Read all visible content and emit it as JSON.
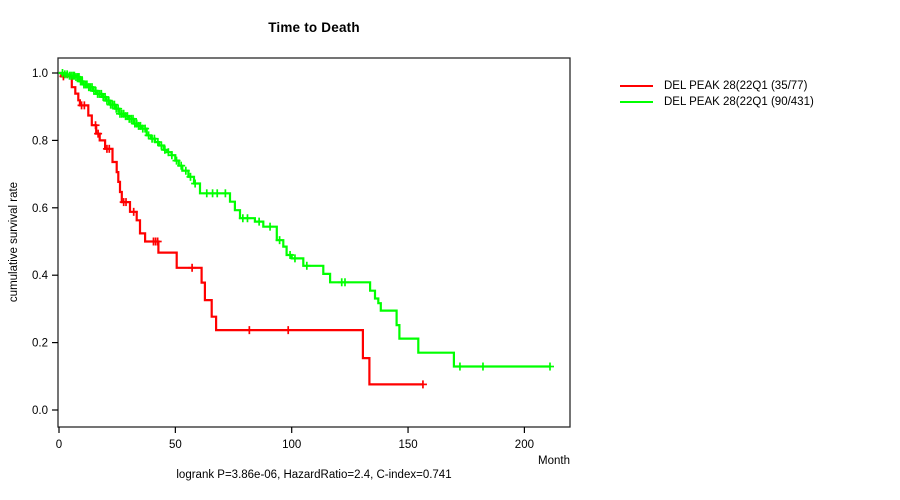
{
  "title": "Time to Death",
  "y_axis_label": "cumulative survival rate",
  "x_axis_label": "Month",
  "footer_stats": "logrank P=3.86e-06, HazardRatio=2.4, C-index=0.741",
  "legend": {
    "items": [
      {
        "label": "DEL PEAK 28(22Q1 (35/77)",
        "color": "#ff0000"
      },
      {
        "label": "DEL PEAK 28(22Q1 (90/431)",
        "color": "#00ff00"
      }
    ]
  },
  "chart_data": {
    "type": "line",
    "subtype": "kaplan-meier-step-survival",
    "title": "Time to Death",
    "xlabel": "Month",
    "ylabel": "cumulative survival rate",
    "xlim": [
      0,
      220
    ],
    "ylim": [
      0,
      1
    ],
    "x_ticks": [
      0,
      50,
      100,
      150,
      200
    ],
    "y_ticks": [
      "0.0",
      "0.2",
      "0.4",
      "0.6",
      "0.8",
      "1.0"
    ],
    "grid": false,
    "legend_position": "right-outside",
    "annotation": "logrank P=3.86e-06, HazardRatio=2.4, C-index=0.741",
    "series": [
      {
        "name": "DEL PEAK 28(22Q1 (35/77)",
        "color": "#ff0000",
        "events": "35/77",
        "steps": [
          [
            0,
            1.0
          ],
          [
            1,
            0.99
          ],
          [
            5.5,
            0.958
          ],
          [
            7,
            0.939
          ],
          [
            8.3,
            0.919
          ],
          [
            9,
            0.904
          ],
          [
            12.6,
            0.874
          ],
          [
            14.1,
            0.845
          ],
          [
            16,
            0.82
          ],
          [
            17.5,
            0.8
          ],
          [
            19.8,
            0.775
          ],
          [
            23,
            0.736
          ],
          [
            24.8,
            0.706
          ],
          [
            25.5,
            0.677
          ],
          [
            26.2,
            0.647
          ],
          [
            27,
            0.617
          ],
          [
            30.5,
            0.588
          ],
          [
            33.4,
            0.563
          ],
          [
            34.8,
            0.524
          ],
          [
            37,
            0.5
          ],
          [
            42.7,
            0.467
          ],
          [
            50.6,
            0.422
          ],
          [
            61.3,
            0.378
          ],
          [
            62.7,
            0.326
          ],
          [
            65.6,
            0.277
          ],
          [
            67.5,
            0.237
          ],
          [
            130.6,
            0.154
          ],
          [
            133.4,
            0.076
          ],
          [
            156.4,
            0.076
          ]
        ],
        "censor_times": [
          1.9,
          9.7,
          10.9,
          15.7,
          16.8,
          20.6,
          21.6,
          27.8,
          28.8,
          32.1,
          40.6,
          41.5,
          42.4,
          57.2,
          81.8,
          98.5,
          156.4
        ]
      },
      {
        "name": "DEL PEAK 28(22Q1 (90/431)",
        "color": "#00ff00",
        "events": "90/431",
        "steps": [
          [
            0,
            1.0
          ],
          [
            2,
            0.996
          ],
          [
            4,
            0.992
          ],
          [
            6.9,
            0.988
          ],
          [
            9,
            0.975
          ],
          [
            10.5,
            0.966
          ],
          [
            12.6,
            0.958
          ],
          [
            14.5,
            0.947
          ],
          [
            16.5,
            0.938
          ],
          [
            18.3,
            0.929
          ],
          [
            20,
            0.918
          ],
          [
            22,
            0.906
          ],
          [
            24.1,
            0.894
          ],
          [
            26,
            0.879
          ],
          [
            28,
            0.872
          ],
          [
            29.8,
            0.864
          ],
          [
            32,
            0.85
          ],
          [
            33.5,
            0.843
          ],
          [
            35.5,
            0.835
          ],
          [
            37.7,
            0.815
          ],
          [
            39.5,
            0.805
          ],
          [
            41.3,
            0.795
          ],
          [
            43,
            0.785
          ],
          [
            45,
            0.772
          ],
          [
            46.5,
            0.765
          ],
          [
            48.4,
            0.756
          ],
          [
            50,
            0.74
          ],
          [
            51.5,
            0.725
          ],
          [
            53,
            0.71
          ],
          [
            55.6,
            0.692
          ],
          [
            58,
            0.672
          ],
          [
            60.6,
            0.643
          ],
          [
            73.5,
            0.618
          ],
          [
            75.6,
            0.593
          ],
          [
            77.8,
            0.569
          ],
          [
            84.2,
            0.559
          ],
          [
            87.8,
            0.544
          ],
          [
            93.6,
            0.504
          ],
          [
            96.4,
            0.485
          ],
          [
            97.8,
            0.46
          ],
          [
            100,
            0.45
          ],
          [
            105,
            0.428
          ],
          [
            113.6,
            0.404
          ],
          [
            116.5,
            0.379
          ],
          [
            133.7,
            0.354
          ],
          [
            135.8,
            0.331
          ],
          [
            137.2,
            0.317
          ],
          [
            138.3,
            0.295
          ],
          [
            145.1,
            0.252
          ],
          [
            146.3,
            0.212
          ],
          [
            154.4,
            0.17
          ],
          [
            169.7,
            0.129
          ],
          [
            211,
            0.129
          ]
        ],
        "censor_times": [
          1.5,
          2.5,
          3.5,
          4.5,
          5.2,
          6,
          6.6,
          7.3,
          8,
          8.6,
          9.3,
          10,
          10.7,
          11.4,
          12,
          12.8,
          13.5,
          14.2,
          15,
          15.8,
          16.6,
          17.4,
          18.2,
          19,
          19.8,
          20.6,
          21.4,
          22.2,
          23,
          23.8,
          24.6,
          25.4,
          26.2,
          27,
          27.8,
          28.6,
          29.4,
          30.2,
          31,
          31.8,
          32.6,
          33.4,
          34.2,
          35,
          36,
          37,
          38.5,
          40,
          41,
          42.5,
          44,
          45.5,
          47,
          48.5,
          50.5,
          52.5,
          54.5,
          56.5,
          58.5,
          63.5,
          66,
          68,
          71.5,
          79,
          81,
          86,
          90.7,
          94.8,
          99.3,
          101.4,
          106.5,
          121.5,
          122.9,
          172.3,
          182.2,
          211
        ]
      }
    ]
  }
}
